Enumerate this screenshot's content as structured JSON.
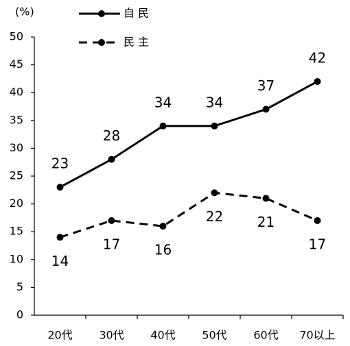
{
  "chart_data": {
    "type": "line",
    "y_label": "(%)",
    "categories": [
      "20代",
      "30代",
      "40代",
      "50代",
      "60代",
      "70以上"
    ],
    "series": [
      {
        "name": "自 民",
        "color": "#000000",
        "dash": false,
        "label_position": "above",
        "values": [
          23,
          28,
          34,
          34,
          37,
          42
        ]
      },
      {
        "name": "民 主",
        "color": "#000000",
        "dash": true,
        "label_position": "below",
        "values": [
          14,
          17,
          16,
          22,
          21,
          17
        ]
      }
    ],
    "ylim": [
      0,
      50
    ],
    "yticks": [
      0,
      5,
      10,
      15,
      20,
      25,
      30,
      35,
      40,
      45,
      50
    ],
    "grid": false
  }
}
